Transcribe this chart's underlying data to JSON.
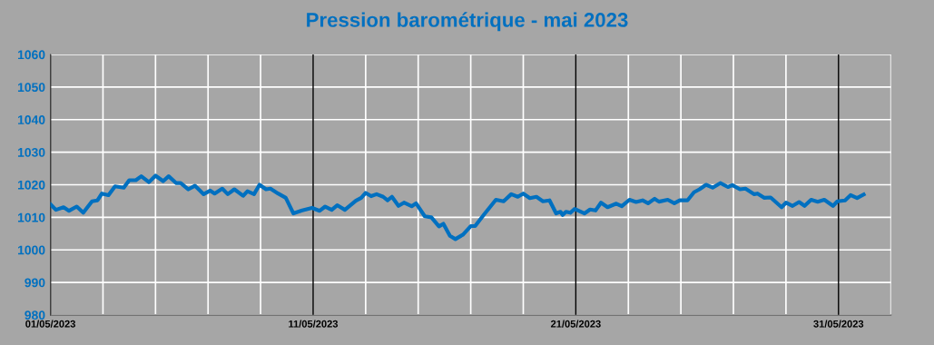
{
  "chart_data": {
    "type": "line",
    "title": "Pression barométrique - mai 2023",
    "x": [
      "2023-05-01T00:00",
      "2023-05-01T05:00",
      "2023-05-01T12:00",
      "2023-05-01T17:00",
      "2023-05-02T00:00",
      "2023-05-02T06:00",
      "2023-05-02T14:00",
      "2023-05-02T19:00",
      "2023-05-02T23:00",
      "2023-05-03T05:00",
      "2023-05-03T11:00",
      "2023-05-03T19:00",
      "2023-05-04T00:00",
      "2023-05-04T06:00",
      "2023-05-04T11:00",
      "2023-05-04T18:00",
      "2023-05-05T00:00",
      "2023-05-05T07:00",
      "2023-05-05T12:00",
      "2023-05-05T19:00",
      "2023-05-05T23:00",
      "2023-05-06T06:00",
      "2023-05-06T12:00",
      "2023-05-06T20:00",
      "2023-05-07T02:00",
      "2023-05-07T06:00",
      "2023-05-07T13:00",
      "2023-05-07T18:00",
      "2023-05-08T00:00",
      "2023-05-08T08:00",
      "2023-05-08T12:00",
      "2023-05-08T18:00",
      "2023-05-08T23:00",
      "2023-05-09T05:00",
      "2023-05-09T09:00",
      "2023-05-09T16:00",
      "2023-05-09T23:00",
      "2023-05-10T06:00",
      "2023-05-10T14:00",
      "2023-05-10T23:00",
      "2023-05-11T06:00",
      "2023-05-11T11:00",
      "2023-05-11T17:00",
      "2023-05-11T22:00",
      "2023-05-12T05:00",
      "2023-05-12T15:00",
      "2023-05-12T20:00",
      "2023-05-13T00:00",
      "2023-05-13T05:00",
      "2023-05-13T10:00",
      "2023-05-13T16:00",
      "2023-05-13T20:00",
      "2023-05-14T00:00",
      "2023-05-14T06:00",
      "2023-05-14T11:00",
      "2023-05-14T18:00",
      "2023-05-14T22:00",
      "2023-05-15T06:00",
      "2023-05-15T12:00",
      "2023-05-15T19:00",
      "2023-05-15T23:00",
      "2023-05-16T05:00",
      "2023-05-16T10:00",
      "2023-05-16T17:00",
      "2023-05-17T00:00",
      "2023-05-17T04:00",
      "2023-05-17T12:00",
      "2023-05-17T23:00",
      "2023-05-18T06:00",
      "2023-05-18T13:00",
      "2023-05-18T19:00",
      "2023-05-19T00:00",
      "2023-05-19T06:00",
      "2023-05-19T12:00",
      "2023-05-19T18:00",
      "2023-05-20T00:00",
      "2023-05-20T06:00",
      "2023-05-20T10:00",
      "2023-05-20T12:00",
      "2023-05-20T15:00",
      "2023-05-20T19:00",
      "2023-05-20T23:00",
      "2023-05-21T08:00",
      "2023-05-21T13:00",
      "2023-05-21T18:00",
      "2023-05-21T23:00",
      "2023-05-22T05:00",
      "2023-05-22T13:00",
      "2023-05-22T18:00",
      "2023-05-23T01:00",
      "2023-05-23T07:00",
      "2023-05-23T13:00",
      "2023-05-23T18:00",
      "2023-05-24T00:00",
      "2023-05-24T04:00",
      "2023-05-24T12:00",
      "2023-05-24T18:00",
      "2023-05-24T23:00",
      "2023-05-25T06:00",
      "2023-05-25T12:00",
      "2023-05-25T17:00",
      "2023-05-25T23:00",
      "2023-05-26T05:00",
      "2023-05-26T12:00",
      "2023-05-26T19:00",
      "2023-05-26T23:00",
      "2023-05-27T06:00",
      "2023-05-27T11:00",
      "2023-05-27T19:00",
      "2023-05-27T22:00",
      "2023-05-28T04:00",
      "2023-05-28T10:00",
      "2023-05-28T20:00",
      "2023-05-29T00:00",
      "2023-05-29T06:00",
      "2023-05-29T12:00",
      "2023-05-29T17:00",
      "2023-05-29T23:00",
      "2023-05-30T05:00",
      "2023-05-30T11:00",
      "2023-05-30T19:00",
      "2023-05-30T23:00",
      "2023-05-31T06:00",
      "2023-05-31T11:00",
      "2023-05-31T17:00",
      "2023-05-31T23:00"
    ],
    "series": [
      {
        "color": "#0070c0",
        "values": [
          1014.0,
          1012.3,
          1013.1,
          1012.0,
          1013.3,
          1011.4,
          1014.9,
          1015.2,
          1017.3,
          1016.8,
          1019.5,
          1019.1,
          1021.4,
          1021.4,
          1022.6,
          1020.8,
          1022.8,
          1021.1,
          1022.6,
          1020.5,
          1020.5,
          1018.6,
          1019.7,
          1017.1,
          1018.2,
          1017.3,
          1018.8,
          1017.1,
          1018.6,
          1016.6,
          1018.0,
          1017.1,
          1020.0,
          1018.6,
          1018.8,
          1017.3,
          1016.0,
          1011.2,
          1012.1,
          1012.9,
          1012.0,
          1013.3,
          1012.3,
          1013.7,
          1012.3,
          1015.1,
          1016.0,
          1017.5,
          1016.5,
          1017.1,
          1016.3,
          1015.2,
          1016.3,
          1013.5,
          1014.5,
          1013.4,
          1014.3,
          1010.3,
          1010.0,
          1007.2,
          1008.0,
          1004.3,
          1003.3,
          1004.7,
          1007.3,
          1007.3,
          1010.8,
          1015.4,
          1014.9,
          1017.1,
          1016.3,
          1017.3,
          1015.9,
          1016.3,
          1014.9,
          1015.2,
          1011.2,
          1011.7,
          1010.7,
          1011.7,
          1011.4,
          1012.6,
          1011.2,
          1012.4,
          1012.1,
          1014.5,
          1013.1,
          1014.2,
          1013.4,
          1015.4,
          1014.7,
          1015.2,
          1014.3,
          1015.7,
          1014.8,
          1015.4,
          1014.3,
          1015.2,
          1015.2,
          1017.7,
          1018.6,
          1020.0,
          1019.1,
          1020.5,
          1019.3,
          1019.9,
          1018.6,
          1018.8,
          1017.1,
          1017.3,
          1016.0,
          1016.1,
          1013.1,
          1014.5,
          1013.5,
          1014.7,
          1013.5,
          1015.4,
          1014.8,
          1015.4,
          1013.5,
          1014.9,
          1015.2,
          1016.8,
          1015.9,
          1017.0
        ]
      }
    ],
    "xlim": [
      "2023-05-01",
      "2023-06-02"
    ],
    "xticks": [
      {
        "value": "2023-05-01",
        "label": "01/05/2023"
      },
      {
        "value": "2023-05-03",
        "label": null
      },
      {
        "value": "2023-05-05",
        "label": null
      },
      {
        "value": "2023-05-07",
        "label": null
      },
      {
        "value": "2023-05-09",
        "label": null
      },
      {
        "value": "2023-05-11",
        "label": "11/05/2023"
      },
      {
        "value": "2023-05-13",
        "label": null
      },
      {
        "value": "2023-05-15",
        "label": null
      },
      {
        "value": "2023-05-17",
        "label": null
      },
      {
        "value": "2023-05-19",
        "label": null
      },
      {
        "value": "2023-05-21",
        "label": "21/05/2023"
      },
      {
        "value": "2023-05-23",
        "label": null
      },
      {
        "value": "2023-05-25",
        "label": null
      },
      {
        "value": "2023-05-27",
        "label": null
      },
      {
        "value": "2023-05-29",
        "label": null
      },
      {
        "value": "2023-05-31",
        "label": "31/05/2023"
      },
      {
        "value": "2023-06-02",
        "label": null
      }
    ],
    "ylim": [
      980,
      1060
    ],
    "yticks": [
      980,
      990,
      1000,
      1010,
      1020,
      1030,
      1040,
      1050,
      1060
    ],
    "grid": true,
    "marker": "none",
    "line_style": "solid"
  }
}
